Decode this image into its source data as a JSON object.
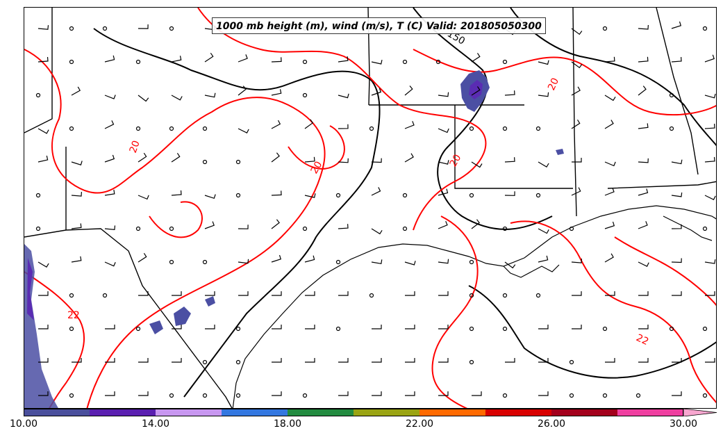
{
  "map": {
    "title": "1000 mb height (m), wind (m/s), T (C) Valid: 201805050300",
    "height_contour_labels": [
      "150"
    ],
    "temperature_contour_labels": [
      "20",
      "20",
      "20",
      "22",
      "22",
      "20"
    ],
    "colors": {
      "temperature_contours": "#ff0000",
      "height_contours": "#000000",
      "coastlines_borders": "#000000",
      "precip_shading": [
        "#4b4fa3",
        "#5a2cb3",
        "#3b1a8f"
      ]
    }
  },
  "colorbar": {
    "tick_labels": [
      "10.00",
      "14.00",
      "18.00",
      "22.00",
      "26.00",
      "30.00"
    ],
    "colors": [
      "#4a4f9c",
      "#5a1fb0",
      "#c897f0",
      "#3377e0",
      "#228b40",
      "#9aa413",
      "#ff6a00",
      "#d80000",
      "#a3001c",
      "#ef3fa0",
      "#f8a7d0"
    ]
  }
}
